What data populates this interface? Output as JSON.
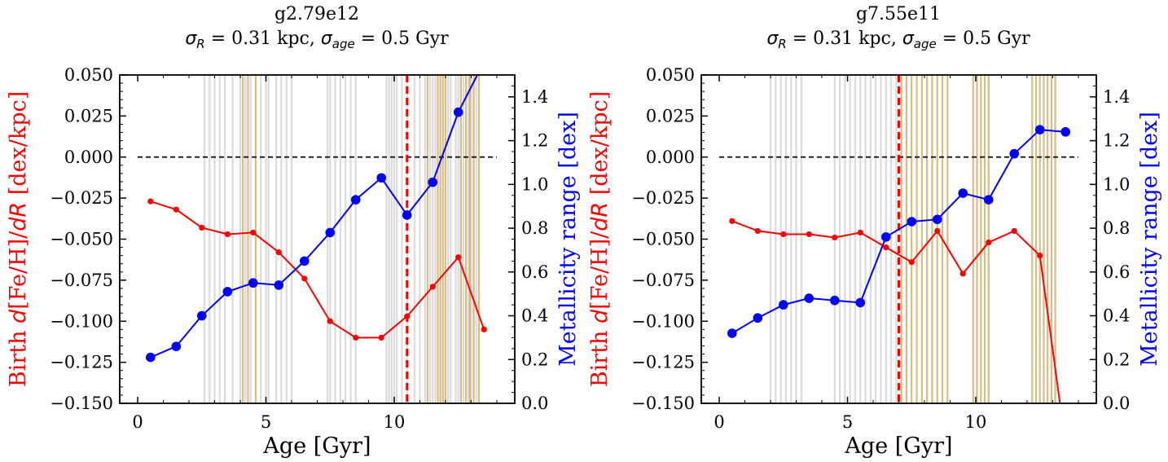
{
  "chart_data": [
    {
      "type": "line",
      "title": "g2.79e12",
      "subtitle": "σR = 0.31 kpc, σage = 0.5 Gyr",
      "xlabel": "Age [Gyr]",
      "ylabel_left": "Birth d[Fe/H]/dR [dex/kpc]",
      "ylabel_right": "Metallicity range [dex]",
      "xlim": [
        -0.7,
        14.7
      ],
      "ylim_left": [
        -0.15,
        0.05
      ],
      "ylim_right": [
        0.0,
        1.5
      ],
      "xticks": [
        "0",
        "5",
        "10"
      ],
      "yticks_left": [
        "0.050",
        "0.025",
        "0.000",
        "−0.025",
        "−0.050",
        "−0.075",
        "−0.100",
        "−0.125",
        "−0.150"
      ],
      "yticks_right": [
        "0.0",
        "0.2",
        "0.4",
        "0.6",
        "0.8",
        "1.0",
        "1.2",
        "1.4"
      ],
      "zero_line": 0.0,
      "vertical_marker": 10.5,
      "colors": {
        "gradient": "#ff0000",
        "range": "#0000ff",
        "marker": "#ff0000",
        "band_gray": "#c8c8c8",
        "band_gold": "#c8a050"
      },
      "series": [
        {
          "name": "Birth d[Fe/H]/dR",
          "axis": "left",
          "x": [
            0.5,
            1.5,
            2.5,
            3.5,
            4.5,
            5.5,
            6.5,
            7.5,
            8.5,
            9.5,
            10.5,
            11.5,
            12.5,
            13.5
          ],
          "values": [
            -0.027,
            -0.032,
            -0.043,
            -0.047,
            -0.046,
            -0.058,
            -0.074,
            -0.1,
            -0.11,
            -0.11,
            -0.097,
            -0.079,
            -0.061,
            -0.105
          ]
        },
        {
          "name": "Metallicity range",
          "axis": "right",
          "x": [
            0.5,
            1.5,
            2.5,
            3.5,
            4.5,
            5.5,
            6.5,
            7.5,
            8.5,
            9.5,
            10.5,
            11.5,
            12.5,
            13.5
          ],
          "values": [
            0.21,
            0.26,
            0.4,
            0.51,
            0.55,
            0.54,
            0.65,
            0.78,
            0.93,
            1.03,
            0.86,
            1.01,
            1.33,
            1.56
          ]
        }
      ],
      "bands_gray": [
        2.6,
        2.8,
        3.0,
        3.2,
        3.4,
        3.7,
        4.0,
        4.2,
        4.4,
        4.8,
        5.0,
        5.1,
        5.4,
        5.6,
        5.8,
        6.0,
        7.4,
        7.5,
        7.7,
        7.9,
        8.1,
        8.3,
        8.5,
        9.7,
        9.8,
        9.9,
        10.0,
        10.1,
        10.3,
        10.5,
        10.8,
        11.0,
        11.2,
        11.4,
        11.5,
        11.6,
        12.1,
        12.2,
        12.4,
        12.5,
        12.7,
        12.9,
        13.0,
        13.2
      ],
      "bands_gold": [
        4.1,
        4.3,
        4.6,
        11.3,
        11.7,
        11.8,
        11.9,
        12.0,
        12.6,
        12.8,
        12.95,
        13.1,
        13.3
      ]
    },
    {
      "type": "line",
      "title": "g7.55e11",
      "subtitle": "σR = 0.31 kpc, σage = 0.5 Gyr",
      "xlabel": "Age [Gyr]",
      "ylabel_left": "Birth d[Fe/H]/dR [dex/kpc]",
      "ylabel_right": "Metallicity range [dex]",
      "xlim": [
        -0.7,
        14.7
      ],
      "ylim_left": [
        -0.15,
        0.05
      ],
      "ylim_right": [
        0.0,
        1.5
      ],
      "xticks": [
        "0",
        "5",
        "10"
      ],
      "yticks_left": [
        "0.050",
        "0.025",
        "0.000",
        "−0.025",
        "−0.050",
        "−0.075",
        "−0.100",
        "−0.125",
        "−0.150"
      ],
      "yticks_right": [
        "0.0",
        "0.2",
        "0.4",
        "0.6",
        "0.8",
        "1.0",
        "1.2",
        "1.4"
      ],
      "zero_line": 0.0,
      "vertical_marker": 7.0,
      "colors": {
        "gradient": "#ff0000",
        "range": "#0000ff",
        "marker": "#ff0000",
        "band_gray": "#c8c8c8",
        "band_gold": "#c8a050"
      },
      "series": [
        {
          "name": "Birth d[Fe/H]/dR",
          "axis": "left",
          "x": [
            0.5,
            1.5,
            2.5,
            3.5,
            4.5,
            5.5,
            6.5,
            7.5,
            8.5,
            9.5,
            10.5,
            11.5,
            12.5,
            13.5
          ],
          "values": [
            -0.039,
            -0.045,
            -0.047,
            -0.047,
            -0.049,
            -0.046,
            -0.055,
            -0.064,
            -0.045,
            -0.071,
            -0.052,
            -0.045,
            -0.06,
            -0.175
          ]
        },
        {
          "name": "Metallicity range",
          "axis": "right",
          "x": [
            0.5,
            1.5,
            2.5,
            3.5,
            4.5,
            5.5,
            6.5,
            7.5,
            8.5,
            9.5,
            10.5,
            11.5,
            12.5,
            13.5
          ],
          "values": [
            0.32,
            0.39,
            0.45,
            0.48,
            0.47,
            0.46,
            0.76,
            0.83,
            0.84,
            0.96,
            0.93,
            1.14,
            1.25,
            1.24
          ]
        }
      ],
      "bands_gray": [
        2.0,
        2.2,
        2.4,
        2.6,
        2.8,
        3.0,
        3.2,
        4.5,
        4.7,
        4.9,
        5.1,
        5.3,
        5.5,
        5.7,
        5.9,
        6.1,
        6.3,
        6.5,
        6.7,
        6.9
      ],
      "bands_gold": [
        7.1,
        7.3,
        7.5,
        7.7,
        7.9,
        8.1,
        8.3,
        8.5,
        8.7,
        8.9,
        9.9,
        10.05,
        10.2,
        10.35,
        10.5,
        12.2,
        12.35,
        12.5,
        12.65,
        12.8,
        12.95,
        13.1
      ]
    }
  ]
}
